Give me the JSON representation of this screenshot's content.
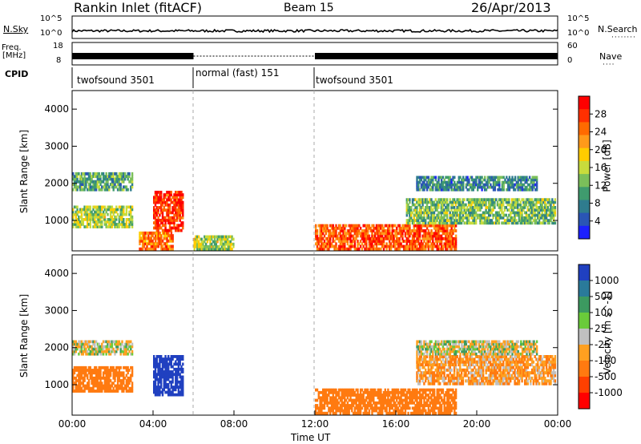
{
  "header": {
    "station": "Rankin Inlet (fitACF)",
    "beam": "Beam 15",
    "date": "26/Apr/2013"
  },
  "noise_panel": {
    "left_label": "N.Sky",
    "right_label": "N.Search",
    "left_ticks": [
      "10^5",
      "10^0"
    ],
    "right_ticks": [
      "10^5",
      "10^0"
    ]
  },
  "freq_panel": {
    "left_label_line1": "Freq.",
    "left_label_line2": "[MHz]",
    "right_label": "Nave",
    "left_ticks": [
      "18",
      "8"
    ],
    "right_ticks": [
      "60",
      "0"
    ]
  },
  "cpid": {
    "label": "CPID",
    "segments": [
      {
        "name": "twofsound 3501",
        "start_hour": 0,
        "end_hour": 6
      },
      {
        "name": "normal (fast) 151",
        "start_hour": 6,
        "end_hour": 12
      },
      {
        "name": "twofsound 3501",
        "start_hour": 12,
        "end_hour": 24
      }
    ]
  },
  "x_axis": {
    "label": "Time UT",
    "ticks": [
      "00:00",
      "04:00",
      "08:00",
      "12:00",
      "16:00",
      "20:00",
      "00:00"
    ]
  },
  "power_bar": {
    "label": "Power [dB]",
    "ticks": [
      "28",
      "24",
      "20",
      "16",
      "12",
      "8",
      "4"
    ],
    "colors": [
      "#ff0000",
      "#ff3000",
      "#ff6a00",
      "#ff9a1a",
      "#ffcc00",
      "#c8dc3c",
      "#7bbf5a",
      "#3f9b6e",
      "#2f7c8e",
      "#2a55b5",
      "#1c20ff"
    ]
  },
  "velocity_bar": {
    "label": "Velocity [m s^-1]",
    "ticks": [
      "1000",
      "500",
      "100",
      "25",
      "-25",
      "-100",
      "-500",
      "-1000"
    ],
    "colors": [
      "#2040c0",
      "#2a7a9a",
      "#3c9a60",
      "#6acb3a",
      "#c0c0c0",
      "#ffa020",
      "#ff7a10",
      "#ff4000",
      "#ff0000"
    ]
  },
  "chart_data": [
    {
      "type": "heatmap",
      "title": "Power [dB]",
      "xlabel": "Time UT",
      "ylabel": "Slant Range [km]",
      "xlim": [
        0,
        24
      ],
      "ylim": [
        180,
        4500
      ],
      "yticks": [
        1000,
        2000,
        3000,
        4000
      ],
      "colorbar": {
        "label": "Power [dB]",
        "ticks": [
          4,
          8,
          12,
          16,
          20,
          24,
          28
        ]
      },
      "regions": [
        {
          "t0": 0.0,
          "t1": 3.0,
          "r0": 800,
          "r1": 1400,
          "value": 14
        },
        {
          "t0": 0.0,
          "t1": 3.0,
          "r0": 1800,
          "r1": 2300,
          "value": 10
        },
        {
          "t0": 3.3,
          "t1": 5.0,
          "r0": 200,
          "r1": 700,
          "value": 22
        },
        {
          "t0": 4.0,
          "t1": 5.5,
          "r0": 700,
          "r1": 1800,
          "value": 26
        },
        {
          "t0": 6.0,
          "t1": 8.0,
          "r0": 200,
          "r1": 600,
          "value": 14
        },
        {
          "t0": 12.0,
          "t1": 19.0,
          "r0": 200,
          "r1": 900,
          "value": 24
        },
        {
          "t0": 16.5,
          "t1": 23.9,
          "r0": 900,
          "r1": 1600,
          "value": 12
        },
        {
          "t0": 17.0,
          "t1": 23.0,
          "r0": 1800,
          "r1": 2200,
          "value": 8
        }
      ]
    },
    {
      "type": "heatmap",
      "title": "Velocity",
      "xlabel": "Time UT",
      "ylabel": "Slant Range [km]",
      "xlim": [
        0,
        24
      ],
      "ylim": [
        180,
        4500
      ],
      "yticks": [
        1000,
        2000,
        3000,
        4000
      ],
      "colorbar": {
        "label": "Velocity [m s^-1]",
        "ticks": [
          1000,
          500,
          100,
          25,
          -25,
          -100,
          -500,
          -1000
        ]
      },
      "regions": [
        {
          "t0": 0.0,
          "t1": 3.0,
          "r0": 800,
          "r1": 1500,
          "value": -300
        },
        {
          "t0": 0.0,
          "t1": 3.0,
          "r0": 1800,
          "r1": 2200,
          "value": 0
        },
        {
          "t0": 4.0,
          "t1": 5.5,
          "r0": 700,
          "r1": 1800,
          "value": 800
        },
        {
          "t0": 12.0,
          "t1": 19.0,
          "r0": 200,
          "r1": 900,
          "value": -200
        },
        {
          "t0": 17.0,
          "t1": 23.9,
          "r0": 1000,
          "r1": 1800,
          "value": -80
        },
        {
          "t0": 17.0,
          "t1": 23.0,
          "r0": 1800,
          "r1": 2200,
          "value": 0
        }
      ]
    }
  ]
}
